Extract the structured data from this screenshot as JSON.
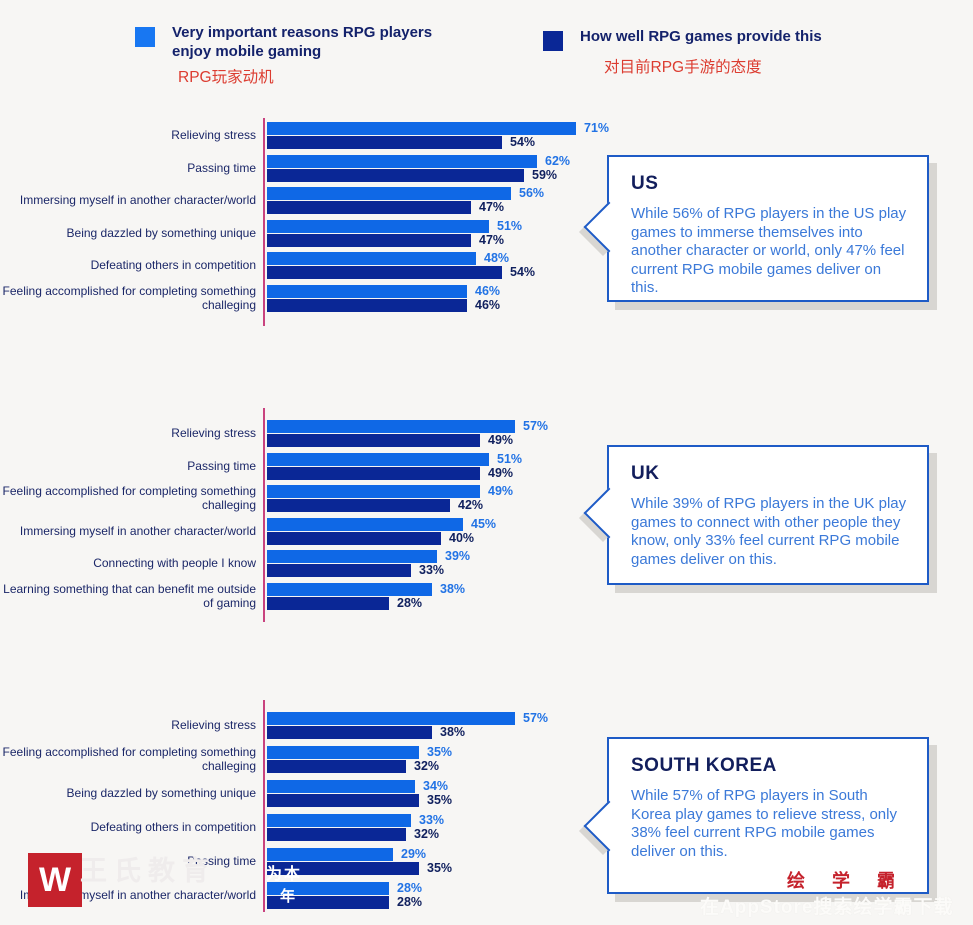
{
  "theme": {
    "background": "#F7F6F4",
    "series1_color": "#0F68E6",
    "series2_color": "#0A2796",
    "axis_line_color": "#C9437F",
    "callout_border_color": "#1E5BC6",
    "red_accent": "#DC3C30",
    "watermark_red": "#C5222C"
  },
  "legend": [
    {
      "label": "Very important reasons RPG players enjoy mobile gaming",
      "subtitle_cn": "RPG玩家动机",
      "color": "#1877F2"
    },
    {
      "label": "How well RPG games provide this",
      "subtitle_cn": "对目前RPG手游的态度",
      "color": "#0A2796"
    }
  ],
  "chart_data": [
    {
      "type": "bar",
      "orientation": "horizontal",
      "unit": "%",
      "xlim": [
        0,
        100
      ],
      "region": "US",
      "categories": [
        "Relieving stress",
        "Passing time",
        "Immersing myself in another character/world",
        "Being dazzled by something unique",
        "Defeating others in competition",
        "Feeling accomplished for completing something challeging"
      ],
      "series": [
        {
          "name": "Very important reasons RPG players enjoy mobile gaming",
          "values": [
            71,
            62,
            56,
            51,
            48,
            46
          ]
        },
        {
          "name": "How well RPG games provide this",
          "values": [
            54,
            59,
            47,
            47,
            54,
            46
          ]
        }
      ],
      "callout": {
        "title": "US",
        "text": "While 56% of RPG players in the US play games to immerse themselves into another character or world, only 47% feel current RPG mobile games deliver on this."
      }
    },
    {
      "type": "bar",
      "orientation": "horizontal",
      "unit": "%",
      "xlim": [
        0,
        100
      ],
      "region": "UK",
      "categories": [
        "Relieving stress",
        "Passing time",
        "Feeling accomplished for completing something challeging",
        "Immersing myself in another character/world",
        "Connecting with people I know",
        "Learning something that can benefit me outside of gaming"
      ],
      "series": [
        {
          "name": "Very important reasons RPG players enjoy mobile gaming",
          "values": [
            57,
            51,
            49,
            45,
            39,
            38
          ]
        },
        {
          "name": "How well RPG games provide this",
          "values": [
            49,
            49,
            42,
            40,
            33,
            28
          ]
        }
      ],
      "callout": {
        "title": "UK",
        "text": "While 39% of RPG players in the UK play games to connect with other people they know, only 33% feel current RPG mobile games deliver on this."
      }
    },
    {
      "type": "bar",
      "orientation": "horizontal",
      "unit": "%",
      "xlim": [
        0,
        100
      ],
      "region": "SOUTH KOREA",
      "categories": [
        "Relieving stress",
        "Feeling accomplished for completing something challeging",
        "Being dazzled by something unique",
        "Defeating others in competition",
        "Passing time",
        "Immersing myself in another character/world"
      ],
      "series": [
        {
          "name": "Very important reasons RPG players enjoy mobile gaming",
          "values": [
            57,
            35,
            34,
            33,
            29,
            28
          ]
        },
        {
          "name": "How well RPG games provide this",
          "values": [
            38,
            32,
            35,
            32,
            35,
            28
          ]
        }
      ],
      "callout": {
        "title": "SOUTH KOREA",
        "text": "While 57% of RPG players in South Korea play games to relieve stress, only 38% feel current RPG mobile games deliver on this."
      }
    }
  ],
  "watermarks": {
    "logo_glyph": "W",
    "brand_faint": "王氏教育",
    "overlay_char_1": "为本",
    "overlay_char_2": "年",
    "brand_red": "绘 学 霸",
    "appstore_line": "在AppStore搜索绘学霸下载"
  }
}
